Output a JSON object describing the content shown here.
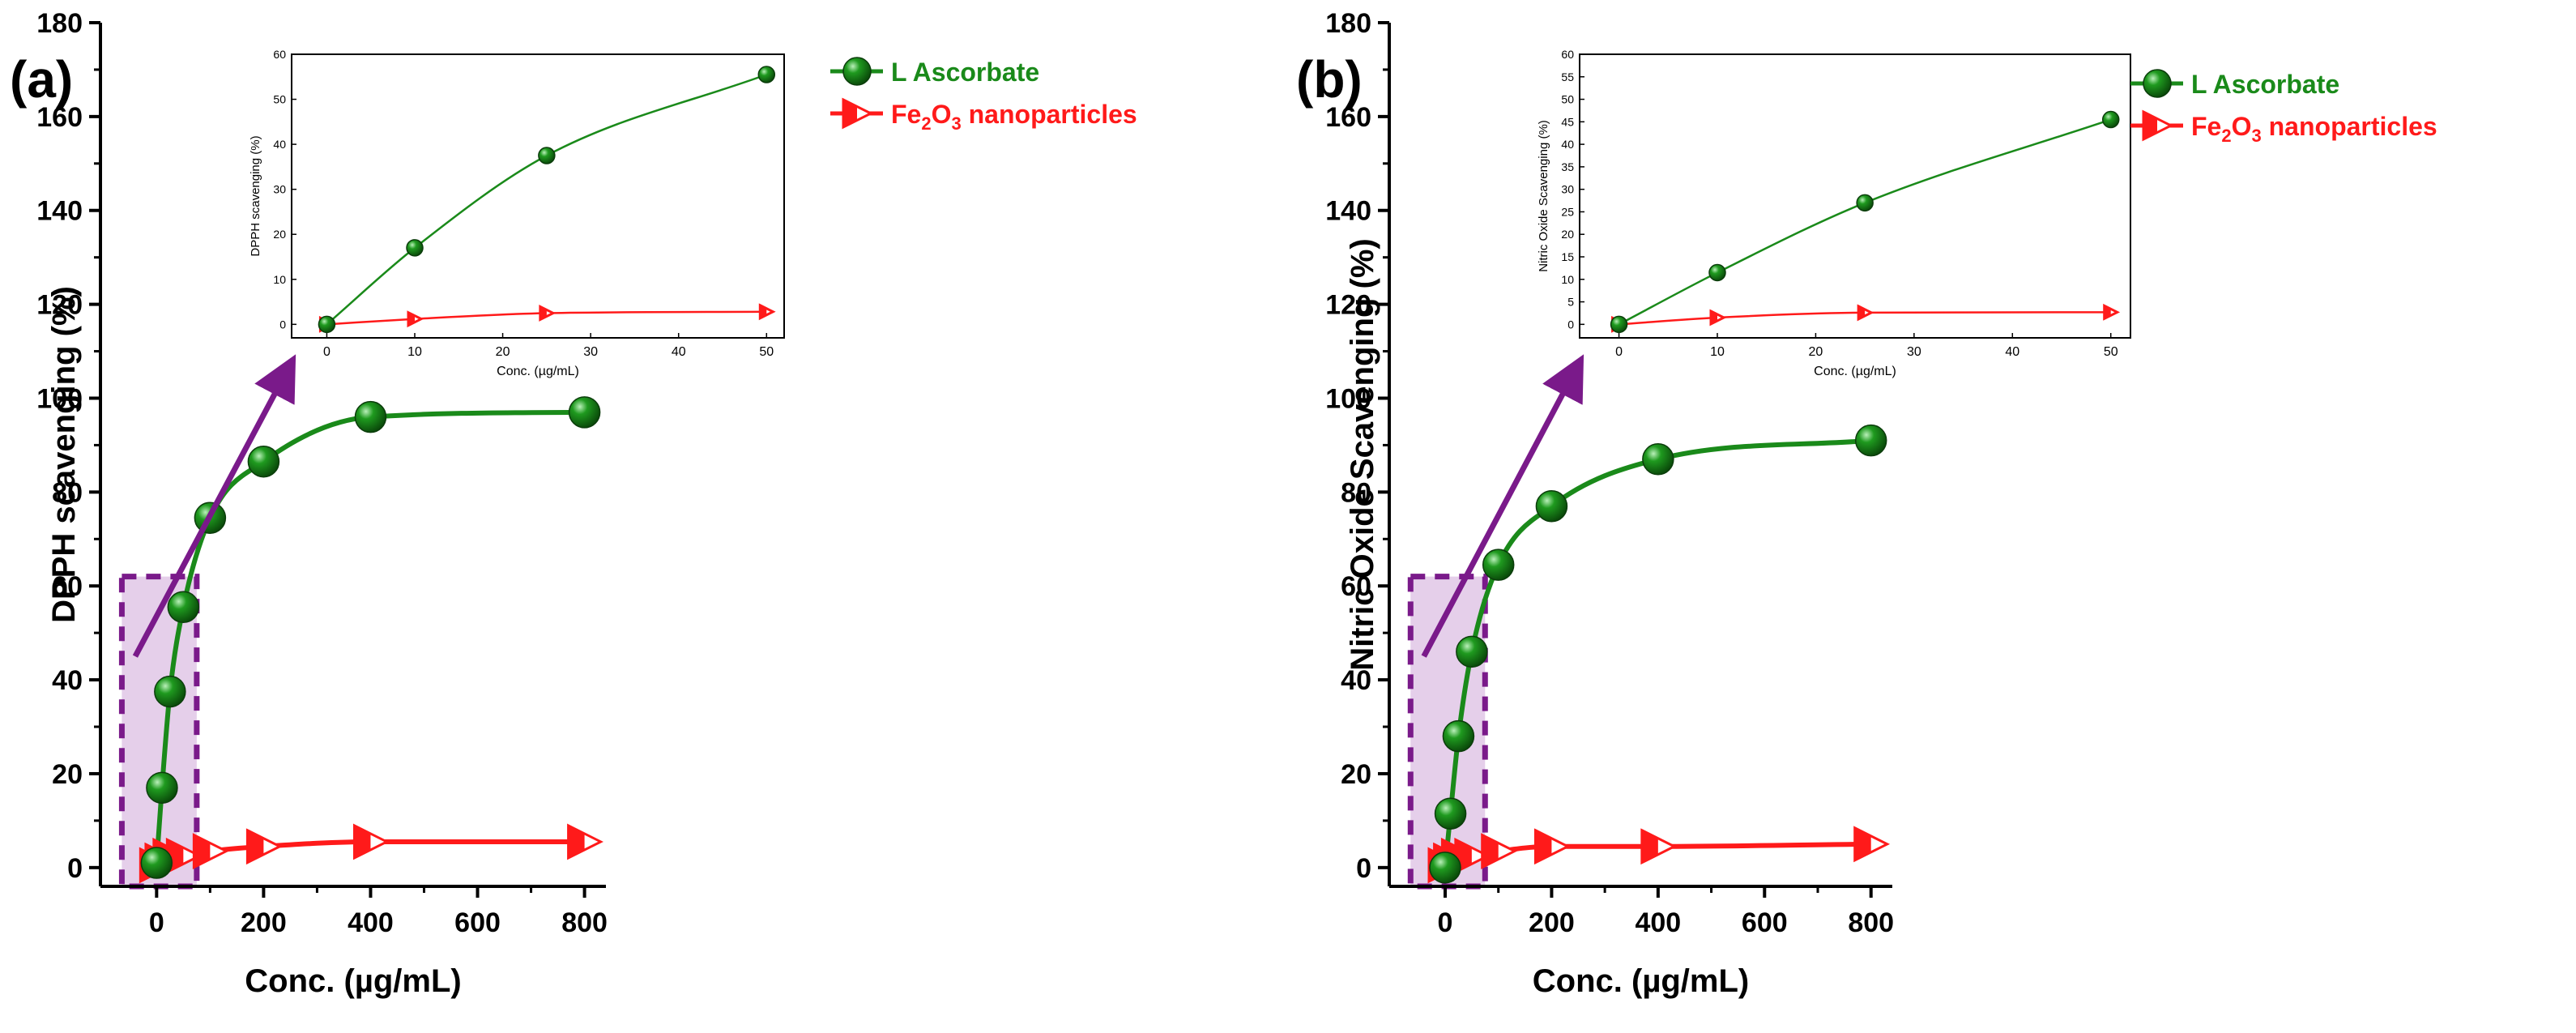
{
  "figure": {
    "colors": {
      "green": "#1a8a1a",
      "green_dark": "#0d5e0d",
      "red": "#ff1a1a",
      "purple": "#7a1a8a",
      "box_fill": "#e5cfea"
    }
  },
  "chart_data": [
    {
      "type": "line",
      "panel_label": "(a)",
      "xlabel": "Conc. (µg/mL)",
      "ylabel": "DPPH scavenging (%)",
      "xlim": [
        -105,
        840
      ],
      "ylim": [
        -4,
        180
      ],
      "xticks": [
        0,
        200,
        400,
        600,
        800
      ],
      "xtick_labels": [
        "0",
        "200",
        "400",
        "600",
        "800"
      ],
      "yticks": [
        0,
        20,
        40,
        60,
        80,
        100,
        120,
        140,
        160,
        180
      ],
      "ytick_labels": [
        "0",
        "20",
        "40",
        "60",
        "80",
        "100",
        "120",
        "140",
        "160",
        "180"
      ],
      "series": [
        {
          "name": "L Ascorbate",
          "marker": "sphere",
          "color": "#1a8a1a",
          "x": [
            0,
            10,
            25,
            50,
            100,
            200,
            400,
            800
          ],
          "y": [
            1,
            17,
            37.5,
            55.5,
            74.5,
            86.5,
            96,
            97
          ]
        },
        {
          "name": "Fe2O3 nanoparticles",
          "marker": "right-triangle",
          "color": "#ff1a1a",
          "x": [
            0,
            10,
            25,
            50,
            100,
            200,
            400,
            800
          ],
          "y": [
            0.5,
            1.5,
            2.5,
            2.5,
            3.5,
            4.5,
            5.5,
            5.5
          ]
        }
      ],
      "legend": {
        "position": "top-right",
        "entries": [
          {
            "text": "L Ascorbate",
            "color": "#1a8a1a"
          },
          {
            "text_main": "Fe",
            "sub1": "2",
            "text_mid": "O",
            "sub2": "3",
            "text_tail": " nanoparticles",
            "color": "#ff1a1a"
          }
        ]
      },
      "annotation": "shaded box over 0–50 µg/mL with arrow pointing to inset",
      "inset": {
        "xlabel": "Conc. (µg/mL)",
        "ylabel": "DPPH scavenging (%)",
        "xlim": [
          -4,
          52
        ],
        "ylim": [
          -3,
          60
        ],
        "xticks": [
          0,
          10,
          20,
          30,
          40,
          50
        ],
        "xtick_labels": [
          "0",
          "10",
          "20",
          "30",
          "40",
          "50"
        ],
        "yticks": [
          0,
          10,
          20,
          30,
          40,
          50,
          60
        ],
        "ytick_labels": [
          "0",
          "10",
          "20",
          "30",
          "40",
          "50",
          "60"
        ],
        "series": [
          {
            "name": "L Ascorbate",
            "x": [
              0,
              10,
              25,
              50
            ],
            "y": [
              0,
              17,
              37.5,
              55.5
            ]
          },
          {
            "name": "Fe2O3 nanoparticles",
            "x": [
              0,
              10,
              25,
              50
            ],
            "y": [
              0,
              1.2,
              2.5,
              2.8
            ]
          }
        ]
      }
    },
    {
      "type": "line",
      "panel_label": "(b)",
      "xlabel": "Conc. (µg/mL)",
      "ylabel": "Nitric Oxide Scavenging (%)",
      "xlim": [
        -105,
        840
      ],
      "ylim": [
        -4,
        180
      ],
      "xticks": [
        0,
        200,
        400,
        600,
        800
      ],
      "xtick_labels": [
        "0",
        "200",
        "400",
        "600",
        "800"
      ],
      "yticks": [
        0,
        20,
        40,
        60,
        80,
        100,
        120,
        140,
        160,
        180
      ],
      "ytick_labels": [
        "0",
        "20",
        "40",
        "60",
        "80",
        "100",
        "120",
        "140",
        "160",
        "180"
      ],
      "series": [
        {
          "name": "L Ascorbate",
          "marker": "sphere",
          "color": "#1a8a1a",
          "x": [
            0,
            10,
            25,
            50,
            100,
            200,
            400,
            800
          ],
          "y": [
            0,
            11.5,
            28,
            46,
            64.5,
            77,
            87,
            91
          ]
        },
        {
          "name": "Fe2O3 nanoparticles",
          "marker": "right-triangle",
          "color": "#ff1a1a",
          "x": [
            0,
            10,
            25,
            50,
            100,
            200,
            400,
            800
          ],
          "y": [
            0.5,
            1.5,
            2.5,
            2.5,
            3.5,
            4.5,
            4.5,
            5
          ]
        }
      ],
      "legend": {
        "position": "top-right",
        "entries": [
          {
            "text": "L Ascorbate",
            "color": "#1a8a1a"
          },
          {
            "text_main": "Fe",
            "sub1": "2",
            "text_mid": "O",
            "sub2": "3",
            "text_tail": " nanoparticles",
            "color": "#ff1a1a"
          }
        ]
      },
      "annotation": "shaded box over 0–50 µg/mL with arrow pointing to inset",
      "inset": {
        "xlabel": "Conc. (µg/mL)",
        "ylabel": "Nitric Oxide Scavenging (%)",
        "xlim": [
          -4,
          52
        ],
        "ylim": [
          -3,
          60
        ],
        "xticks": [
          0,
          10,
          20,
          30,
          40,
          50
        ],
        "xtick_labels": [
          "0",
          "10",
          "20",
          "30",
          "40",
          "50"
        ],
        "yticks": [
          0,
          5,
          10,
          15,
          20,
          25,
          30,
          35,
          40,
          45,
          50,
          55,
          60
        ],
        "ytick_labels": [
          "0",
          "5",
          "10",
          "15",
          "20",
          "25",
          "30",
          "35",
          "40",
          "45",
          "50",
          "55",
          "60"
        ],
        "series": [
          {
            "name": "L Ascorbate",
            "x": [
              0,
              10,
              25,
              50
            ],
            "y": [
              0,
              11.5,
              27,
              45.5
            ]
          },
          {
            "name": "Fe2O3 nanoparticles",
            "x": [
              0,
              10,
              25,
              50
            ],
            "y": [
              0,
              1.5,
              2.6,
              2.7
            ]
          }
        ]
      }
    }
  ]
}
